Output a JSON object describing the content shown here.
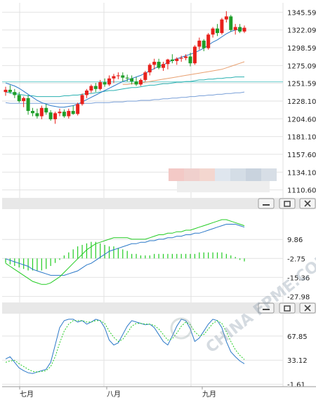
{
  "window_buttons": [
    {
      "name": "minimize-button",
      "icon": "minimize-icon"
    },
    {
      "name": "restore-button",
      "icon": "restore-icon"
    },
    {
      "name": "close-button",
      "icon": "close-icon"
    }
  ],
  "watermark": "CHINA FPME.COM",
  "chart_data": [
    {
      "type": "candlestick",
      "panel": "price",
      "x_labels": [
        "七月",
        "八月",
        "九月"
      ],
      "y_ticks": [
        "1345.59",
        "1322.09",
        "1298.59",
        "1275.09",
        "1251.59",
        "1228.10",
        "1204.60",
        "1181.10",
        "1157.60",
        "1134.10",
        "1110.60"
      ],
      "y_tick_values": [
        1345.59,
        1322.09,
        1298.59,
        1275.09,
        1251.59,
        1228.1,
        1204.6,
        1181.1,
        1157.6,
        1134.1,
        1110.6
      ],
      "ylim": [
        1100,
        1358
      ],
      "reference_line": 1253.5,
      "colors": {
        "up": "#e8211c",
        "down": "#1f9e2a",
        "ma_short": "#2a78c8",
        "ma_mid": "#e8a070",
        "ma_long": "#2ab0b0",
        "ma_xlong": "#7aa0d8"
      },
      "candles": [
        {
          "o": 1240,
          "h": 1247,
          "l": 1235,
          "c": 1243
        },
        {
          "o": 1243,
          "h": 1249,
          "l": 1238,
          "c": 1240
        },
        {
          "o": 1240,
          "h": 1244,
          "l": 1232,
          "c": 1236
        },
        {
          "o": 1236,
          "h": 1240,
          "l": 1226,
          "c": 1228
        },
        {
          "o": 1228,
          "h": 1234,
          "l": 1220,
          "c": 1232
        },
        {
          "o": 1232,
          "h": 1236,
          "l": 1210,
          "c": 1215
        },
        {
          "o": 1215,
          "h": 1219,
          "l": 1208,
          "c": 1212
        },
        {
          "o": 1212,
          "h": 1218,
          "l": 1205,
          "c": 1208
        },
        {
          "o": 1208,
          "h": 1222,
          "l": 1204,
          "c": 1219
        },
        {
          "o": 1219,
          "h": 1224,
          "l": 1210,
          "c": 1213
        },
        {
          "o": 1213,
          "h": 1216,
          "l": 1202,
          "c": 1204
        },
        {
          "o": 1204,
          "h": 1214,
          "l": 1198,
          "c": 1212
        },
        {
          "o": 1212,
          "h": 1218,
          "l": 1208,
          "c": 1214
        },
        {
          "o": 1214,
          "h": 1217,
          "l": 1206,
          "c": 1208
        },
        {
          "o": 1208,
          "h": 1218,
          "l": 1205,
          "c": 1215
        },
        {
          "o": 1215,
          "h": 1222,
          "l": 1210,
          "c": 1211
        },
        {
          "o": 1211,
          "h": 1226,
          "l": 1209,
          "c": 1224
        },
        {
          "o": 1224,
          "h": 1238,
          "l": 1222,
          "c": 1236
        },
        {
          "o": 1236,
          "h": 1244,
          "l": 1232,
          "c": 1242
        },
        {
          "o": 1242,
          "h": 1250,
          "l": 1239,
          "c": 1248
        },
        {
          "o": 1248,
          "h": 1252,
          "l": 1240,
          "c": 1244
        },
        {
          "o": 1244,
          "h": 1256,
          "l": 1242,
          "c": 1253
        },
        {
          "o": 1253,
          "h": 1258,
          "l": 1247,
          "c": 1250
        },
        {
          "o": 1250,
          "h": 1262,
          "l": 1248,
          "c": 1258
        },
        {
          "o": 1258,
          "h": 1264,
          "l": 1252,
          "c": 1261
        },
        {
          "o": 1261,
          "h": 1266,
          "l": 1257,
          "c": 1262
        },
        {
          "o": 1262,
          "h": 1266,
          "l": 1254,
          "c": 1259
        },
        {
          "o": 1259,
          "h": 1263,
          "l": 1254,
          "c": 1258
        },
        {
          "o": 1258,
          "h": 1262,
          "l": 1250,
          "c": 1254
        },
        {
          "o": 1254,
          "h": 1260,
          "l": 1248,
          "c": 1250
        },
        {
          "o": 1250,
          "h": 1258,
          "l": 1248,
          "c": 1256
        },
        {
          "o": 1256,
          "h": 1268,
          "l": 1254,
          "c": 1266
        },
        {
          "o": 1266,
          "h": 1278,
          "l": 1262,
          "c": 1276
        },
        {
          "o": 1276,
          "h": 1284,
          "l": 1270,
          "c": 1280
        },
        {
          "o": 1280,
          "h": 1284,
          "l": 1270,
          "c": 1272
        },
        {
          "o": 1272,
          "h": 1280,
          "l": 1268,
          "c": 1277
        },
        {
          "o": 1277,
          "h": 1284,
          "l": 1270,
          "c": 1283
        },
        {
          "o": 1283,
          "h": 1290,
          "l": 1278,
          "c": 1281
        },
        {
          "o": 1281,
          "h": 1286,
          "l": 1276,
          "c": 1284
        },
        {
          "o": 1284,
          "h": 1288,
          "l": 1280,
          "c": 1285
        },
        {
          "o": 1285,
          "h": 1290,
          "l": 1282,
          "c": 1287
        },
        {
          "o": 1287,
          "h": 1292,
          "l": 1274,
          "c": 1278
        },
        {
          "o": 1278,
          "h": 1302,
          "l": 1276,
          "c": 1300
        },
        {
          "o": 1300,
          "h": 1312,
          "l": 1296,
          "c": 1308
        },
        {
          "o": 1308,
          "h": 1310,
          "l": 1294,
          "c": 1298
        },
        {
          "o": 1298,
          "h": 1318,
          "l": 1296,
          "c": 1316
        },
        {
          "o": 1316,
          "h": 1326,
          "l": 1312,
          "c": 1324
        },
        {
          "o": 1324,
          "h": 1330,
          "l": 1314,
          "c": 1318
        },
        {
          "o": 1318,
          "h": 1338,
          "l": 1316,
          "c": 1336
        },
        {
          "o": 1336,
          "h": 1347,
          "l": 1332,
          "c": 1340
        },
        {
          "o": 1340,
          "h": 1342,
          "l": 1320,
          "c": 1322
        },
        {
          "o": 1322,
          "h": 1330,
          "l": 1316,
          "c": 1326
        },
        {
          "o": 1326,
          "h": 1330,
          "l": 1318,
          "c": 1320
        },
        {
          "o": 1320,
          "h": 1328,
          "l": 1318,
          "c": 1325
        }
      ],
      "ma_short": [
        1252,
        1250,
        1248,
        1245,
        1241,
        1237,
        1233,
        1229,
        1226,
        1224,
        1222,
        1221,
        1220,
        1220,
        1221,
        1222,
        1224,
        1227,
        1230,
        1233,
        1236,
        1239,
        1242,
        1245,
        1248,
        1251,
        1254,
        1256,
        1258,
        1260,
        1262,
        1265,
        1268,
        1271,
        1274,
        1276,
        1279,
        1282,
        1284,
        1286,
        1288,
        1290,
        1292,
        1295,
        1298,
        1302,
        1306,
        1309,
        1313,
        1317,
        1320,
        1322,
        1323,
        1324
      ],
      "ma_mid": [
        null,
        null,
        null,
        null,
        null,
        null,
        null,
        null,
        null,
        null,
        null,
        null,
        null,
        null,
        null,
        null,
        null,
        null,
        null,
        null,
        null,
        null,
        null,
        null,
        null,
        null,
        1250,
        1250,
        1251,
        1251,
        1252,
        1253,
        1254,
        1255,
        1256,
        1257,
        1258,
        1259,
        1260,
        1261,
        1262,
        1263,
        1264,
        1265,
        1266,
        1267,
        1268,
        1269,
        1270,
        1272,
        1274,
        1276,
        1278,
        1280
      ],
      "ma_long": [
        1240,
        1239,
        1238,
        1237,
        1236,
        1235,
        1235,
        1234,
        1234,
        1234,
        1234,
        1234,
        1234,
        1235,
        1235,
        1236,
        1236,
        1237,
        1238,
        1238,
        1239,
        1240,
        1241,
        1242,
        1242,
        1243,
        1244,
        1245,
        1246,
        1246,
        1247,
        1248,
        1249,
        1249,
        1250,
        1251,
        1251,
        1252,
        1253,
        1253,
        1254,
        1254,
        1255,
        1256,
        1256,
        1257,
        1257,
        1258,
        1258,
        1259,
        1259,
        1260,
        1260,
        1260
      ],
      "ma_xlong": [
        1226,
        1225,
        1225,
        1225,
        1225,
        1225,
        1225,
        1225,
        1225,
        1225,
        1225,
        1225,
        1225,
        1225,
        1225,
        1225,
        1225,
        1225,
        1225,
        1225,
        1226,
        1226,
        1226,
        1226,
        1227,
        1227,
        1227,
        1228,
        1228,
        1228,
        1229,
        1229,
        1229,
        1230,
        1230,
        1231,
        1231,
        1232,
        1232,
        1233,
        1233,
        1234,
        1234,
        1235,
        1235,
        1236,
        1236,
        1237,
        1237,
        1238,
        1238,
        1239,
        1239,
        1240
      ]
    },
    {
      "type": "macd",
      "panel": "indicator",
      "y_ticks": [
        "9.86",
        "-2.75",
        "-15.36",
        "-27.98"
      ],
      "y_tick_values": [
        9.86,
        -2.75,
        -15.36,
        -27.98
      ],
      "ylim": [
        -32,
        30
      ],
      "colors": {
        "dif": "#22cc22",
        "dea": "#2a78c8",
        "hist": "#22cc22"
      },
      "dif": [
        -6,
        -8,
        -10,
        -12,
        -14,
        -16,
        -18,
        -19,
        -20,
        -20,
        -19,
        -17,
        -15,
        -12,
        -9,
        -6,
        -3,
        0,
        3,
        5,
        7,
        8,
        9,
        10,
        11,
        11,
        11,
        11,
        10,
        10,
        10,
        10,
        11,
        12,
        13,
        13,
        14,
        14,
        15,
        15,
        16,
        16,
        17,
        18,
        19,
        20,
        21,
        22,
        23,
        23,
        22,
        21,
        20,
        19
      ],
      "dea": [
        -3,
        -4,
        -5,
        -6,
        -7,
        -8,
        -10,
        -11,
        -12,
        -13,
        -14,
        -14,
        -14,
        -14,
        -13,
        -12,
        -11,
        -9,
        -7,
        -6,
        -4,
        -2,
        0,
        2,
        3,
        4,
        5,
        6,
        7,
        7,
        8,
        8,
        9,
        9,
        10,
        10,
        11,
        11,
        12,
        12,
        13,
        13,
        14,
        14,
        15,
        16,
        17,
        18,
        19,
        20,
        20,
        20,
        19,
        18
      ],
      "hist": [
        -3,
        -4,
        -5,
        -6,
        -7,
        -8,
        -8,
        -8,
        -8,
        -7,
        -5,
        -3,
        -1,
        2,
        4,
        6,
        8,
        9,
        10,
        11,
        11,
        10,
        9,
        8,
        8,
        7,
        6,
        5,
        3,
        3,
        2,
        2,
        2,
        3,
        3,
        3,
        3,
        3,
        3,
        3,
        3,
        3,
        3,
        4,
        4,
        4,
        4,
        4,
        4,
        3,
        2,
        1,
        -1,
        -2
      ]
    },
    {
      "type": "kdj",
      "panel": "oscillator",
      "y_ticks": [
        "67.85",
        "33.12",
        "-1.61"
      ],
      "y_tick_values": [
        67.85,
        33.12,
        -1.61
      ],
      "ylim": [
        -5,
        100
      ],
      "colors": {
        "k": "#2a78c8",
        "d": "#22cc22"
      },
      "k": [
        35,
        38,
        30,
        22,
        18,
        15,
        14,
        16,
        18,
        20,
        30,
        55,
        80,
        90,
        92,
        92,
        88,
        90,
        85,
        88,
        92,
        90,
        80,
        62,
        55,
        58,
        70,
        82,
        90,
        88,
        86,
        84,
        85,
        80,
        70,
        60,
        55,
        68,
        82,
        92,
        90,
        78,
        60,
        65,
        75,
        85,
        92,
        90,
        80,
        60,
        45,
        38,
        32,
        28
      ],
      "d": [
        30,
        32,
        33,
        28,
        24,
        20,
        17,
        16,
        17,
        18,
        24,
        38,
        58,
        75,
        85,
        90,
        90,
        90,
        88,
        88,
        90,
        90,
        86,
        75,
        66,
        60,
        63,
        72,
        82,
        86,
        86,
        85,
        85,
        83,
        78,
        70,
        62,
        64,
        72,
        82,
        88,
        84,
        74,
        68,
        70,
        78,
        86,
        90,
        86,
        74,
        60,
        48,
        40,
        34
      ]
    }
  ]
}
